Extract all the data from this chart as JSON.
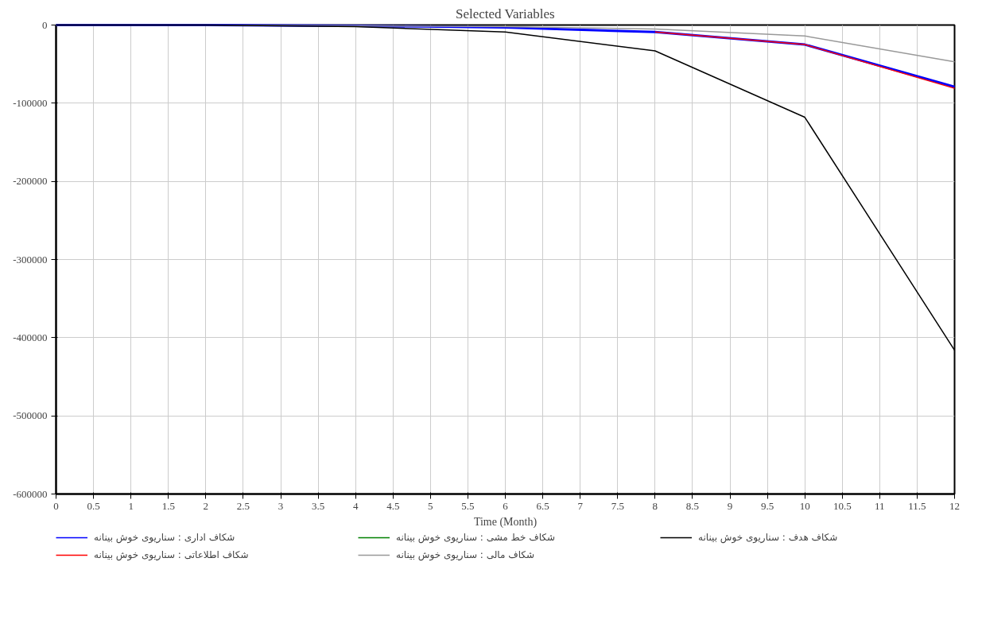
{
  "chart_data": {
    "type": "line",
    "title": "Selected Variables",
    "xlabel": "Time (Month)",
    "x": [
      0,
      2,
      4,
      6,
      8,
      10,
      12
    ],
    "series": [
      {
        "name": "شکاف اداری : سناریوی خوش بینانه",
        "color": "#0000ff",
        "values": [
          0,
          0,
          -1000,
          -3000,
          -9000,
          -25000,
          -79000
        ]
      },
      {
        "name": "شکاف اطلاعاتی : سناریوی خوش بینانه",
        "color": "#ff0000",
        "values": [
          null,
          null,
          null,
          null,
          -9000,
          -25000,
          -81000
        ]
      },
      {
        "name": "شکاف خط مشی : سناریوی خوش بینانه",
        "color": "#008000",
        "values": [
          null,
          null,
          null,
          null,
          null,
          null,
          null
        ]
      },
      {
        "name": "شکاف مالی : سناریوی خوش بینانه",
        "color": "#999999",
        "values": [
          0,
          0,
          -1000,
          -2000,
          -5000,
          -14000,
          -47000
        ]
      },
      {
        "name": "شکاف هدف : سناریوی خوش بینانه",
        "color": "#000000",
        "values": [
          0,
          0,
          -2000,
          -9000,
          -33000,
          -118000,
          -416000
        ]
      }
    ],
    "xlim": [
      0,
      12
    ],
    "xticks": [
      0,
      0.5,
      1,
      1.5,
      2,
      2.5,
      3,
      3.5,
      4,
      4.5,
      5,
      5.5,
      6,
      6.5,
      7,
      7.5,
      8,
      8.5,
      9,
      9.5,
      10,
      10.5,
      11,
      11.5,
      12
    ],
    "ylim": [
      -600000,
      0
    ],
    "yticks": [
      -600000,
      -500000,
      -400000,
      -300000,
      -200000,
      -100000,
      0
    ],
    "grid": true,
    "legend": "bottom",
    "marker": "none",
    "line_style": "solid"
  }
}
